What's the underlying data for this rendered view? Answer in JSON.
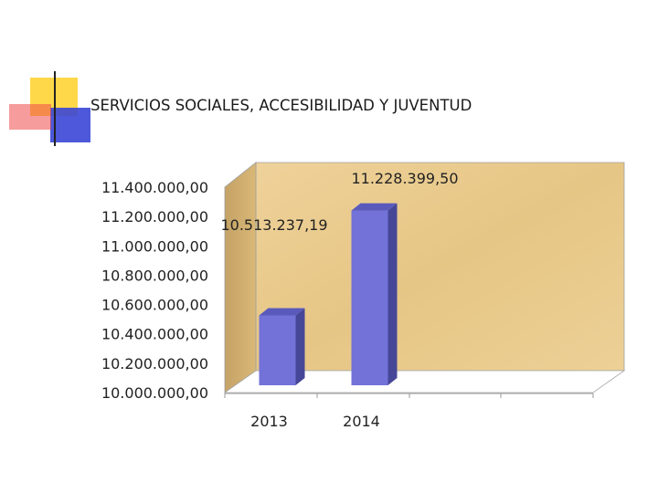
{
  "slide": {
    "title": "SERVICIOS SOCIALES, ACCESIBILIDAD Y JUVENTUD"
  },
  "colors": {
    "bar_front": "#7272d8",
    "bar_side": "#474798",
    "bar_top": "#5a5abc",
    "wall": "#e8c98c",
    "wall_side": "#c6a56a",
    "floor": "#ffffff",
    "accent_yellow": "#ffd84a",
    "accent_blue": "#3a46d6",
    "accent_red": "#ee4a4a"
  },
  "chart_data": {
    "type": "bar",
    "categories": [
      "2013",
      "2014"
    ],
    "values": [
      10513237.19,
      11228399.5
    ],
    "data_labels": [
      "10.513.237,19",
      "11.228.399,50"
    ],
    "title": "",
    "xlabel": "",
    "ylabel": "",
    "ylim": [
      10000000,
      11400000
    ],
    "yticks": [
      {
        "value": 11400000,
        "label": "11.400.000,00"
      },
      {
        "value": 11200000,
        "label": "11.200.000,00"
      },
      {
        "value": 11000000,
        "label": "11.000.000,00"
      },
      {
        "value": 10800000,
        "label": "10.800.000,00"
      },
      {
        "value": 10600000,
        "label": "10.600.000,00"
      },
      {
        "value": 10400000,
        "label": "10.400.000,00"
      },
      {
        "value": 10200000,
        "label": "10.200.000,00"
      },
      {
        "value": 10000000,
        "label": "10.000.000,00"
      }
    ],
    "style": "3d-clustered-column",
    "grid": false,
    "legend": "none"
  }
}
